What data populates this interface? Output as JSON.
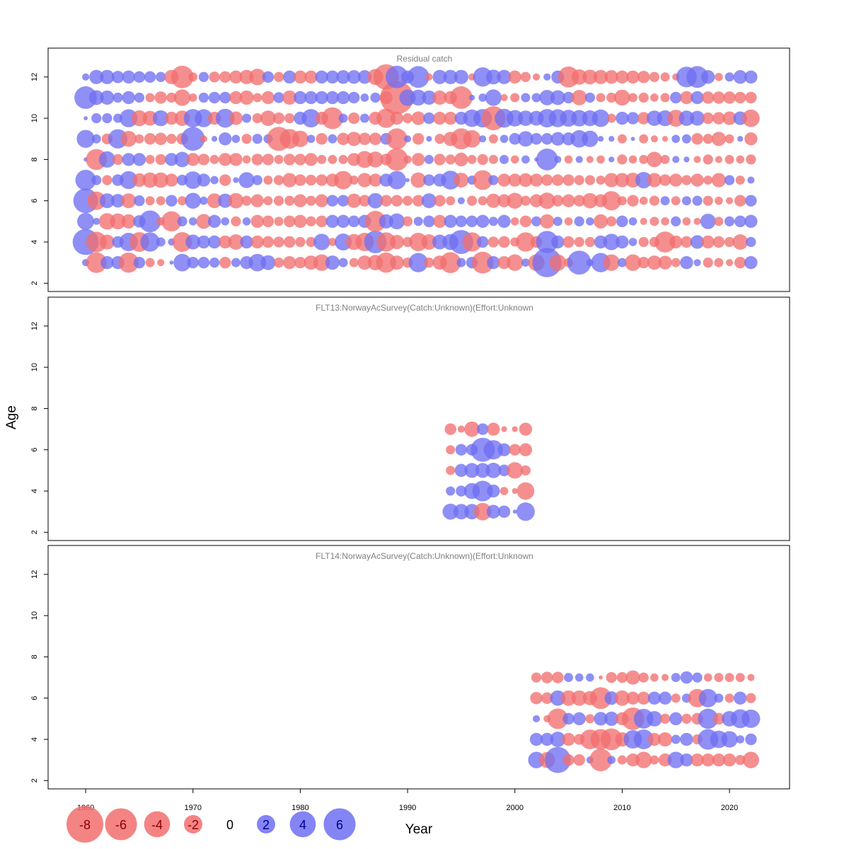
{
  "chart_data": {
    "type": "scatter",
    "subtype": "bubble-residuals",
    "xlabel": "Year",
    "ylabel": "Age",
    "xticks": [
      1960,
      1970,
      1980,
      1990,
      2000,
      2010,
      2020
    ],
    "yticks": [
      2,
      4,
      6,
      8,
      10,
      12
    ],
    "xlim": [
      1956.5,
      2025.6
    ],
    "ylim": [
      1.6,
      13.4
    ],
    "colors": {
      "positive": "#6f6ff2",
      "negative": "#f26f6f"
    },
    "panels": [
      {
        "title": "Residual catch",
        "years": [
          1960,
          2022
        ],
        "ages": [
          3,
          4,
          5,
          6,
          7,
          8,
          9,
          10,
          11,
          12
        ],
        "residuals": {
          "12": [
            0.3,
            1.2,
            1.2,
            0.9,
            1.0,
            0.8,
            0.8,
            0.6,
            -1.2,
            -3.0,
            -0.5,
            0.6,
            -0.7,
            -0.8,
            -1.0,
            -1.2,
            -1.6,
            0.8,
            -0.6,
            1.0,
            -1.0,
            -1.0,
            1.0,
            1.0,
            1.1,
            1.1,
            1.1,
            -1.5,
            -3.8,
            3.0,
            1.0,
            2.8,
            -0.3,
            1.2,
            1.2,
            1.2,
            -0.3,
            2.2,
            1.3,
            1.2,
            -1.0,
            -0.6,
            -0.3,
            0.3,
            1.0,
            -2.6,
            -1.4,
            -1.3,
            -1.2,
            -1.1,
            -1.0,
            -1.0,
            -0.9,
            -0.6,
            -0.5,
            -0.3,
            2.5,
            2.8,
            1.1,
            -0.4,
            0.5,
            1.1,
            1.0
          ],
          "11": [
            3.0,
            1.3,
            1.2,
            0.6,
            1.0,
            0.6,
            -0.5,
            -0.9,
            -0.6,
            -1.6,
            -0.4,
            0.6,
            0.8,
            0.8,
            -1.0,
            -1.2,
            -0.5,
            -1.0,
            0.7,
            -1.2,
            1.0,
            1.0,
            1.0,
            1.0,
            1.0,
            0.8,
            0.4,
            0.6,
            -1.0,
            -6.5,
            1.6,
            1.5,
            1.2,
            -1.2,
            -1.0,
            -3.0,
            0.2,
            0.4,
            1.6,
            -0.3,
            -0.5,
            0.5,
            0.5,
            1.4,
            1.3,
            0.8,
            -1.4,
            0.6,
            -0.5,
            -0.6,
            -1.5,
            -0.5,
            -0.6,
            -0.4,
            -0.5,
            0.8,
            -1.0,
            1.0,
            -0.9,
            -0.9,
            -0.9,
            -0.8,
            -0.8
          ],
          "10": [
            0.1,
            0.6,
            0.6,
            0.5,
            1.9,
            -1.5,
            -1.3,
            1.5,
            -1.0,
            -1.4,
            2.0,
            1.9,
            -1.0,
            2.1,
            -1.1,
            0.5,
            -0.6,
            -1.4,
            -0.8,
            -0.6,
            1.0,
            2.0,
            -1.0,
            -2.8,
            0.5,
            -0.8,
            0.5,
            -1.0,
            -2.2,
            -1.0,
            -0.6,
            -1.1,
            0.8,
            -1.0,
            -1.0,
            1.0,
            1.8,
            2.0,
            -3.4,
            2.1,
            1.6,
            1.4,
            1.3,
            2.0,
            1.9,
            1.7,
            1.6,
            1.5,
            1.8,
            -0.5,
            1.0,
            0.9,
            -0.9,
            1.4,
            1.5,
            -1.7,
            1.4,
            1.3,
            -0.8,
            -0.9,
            -1.1,
            1.1,
            -1.8
          ],
          "9": [
            1.9,
            0.5,
            -0.7,
            2.2,
            -1.5,
            -0.5,
            -0.8,
            -0.9,
            -0.6,
            -0.8,
            3.3,
            -0.3,
            0.2,
            1.0,
            0.4,
            -0.6,
            0.6,
            0.5,
            -3.4,
            -2.3,
            -1.6,
            0.4,
            -0.8,
            0.5,
            -0.9,
            -1.2,
            -0.9,
            -0.9,
            0.8,
            -2.6,
            0.3,
            -0.8,
            0.2,
            -0.6,
            -1.2,
            -2.6,
            -1.8,
            0.3,
            -0.5,
            0.4,
            0.8,
            1.4,
            0.8,
            0.8,
            1.1,
            1.0,
            1.8,
            1.6,
            0.2,
            0.2,
            -0.5,
            0.1,
            -0.5,
            -0.3,
            -0.2,
            0.4,
            0.5,
            -0.8,
            -0.6,
            -1.2,
            -0.5,
            0.2,
            -1.0
          ],
          "8": [
            0.1,
            -2.6,
            1.6,
            -0.7,
            1.0,
            1.0,
            -0.5,
            -0.7,
            1.0,
            1.4,
            -1.0,
            -0.8,
            -0.5,
            -1.0,
            -1.0,
            -0.4,
            -0.8,
            -0.8,
            -0.5,
            -0.8,
            -0.8,
            -1.0,
            -0.5,
            -0.5,
            -0.5,
            -1.0,
            -1.7,
            -1.5,
            -0.8,
            -3.0,
            -0.4,
            -1.0,
            0.5,
            -0.8,
            -0.6,
            -1.1,
            -0.5,
            -0.7,
            -0.5,
            0.5,
            -0.4,
            0.4,
            0.1,
            2.8,
            0.3,
            -0.4,
            0.3,
            -0.3,
            -0.4,
            0.2,
            -0.6,
            -0.4,
            -0.5,
            -1.4,
            -0.5,
            0.3,
            0.2,
            -0.3,
            -0.6,
            -0.3,
            -0.5,
            -0.4,
            -0.6
          ],
          "7": [
            2.5,
            0.6,
            -0.6,
            0.8,
            1.9,
            -1.1,
            -1.4,
            -1.4,
            -1.0,
            0.7,
            1.8,
            1.0,
            0.4,
            -0.8,
            0.2,
            1.5,
            0.6,
            -0.5,
            -0.6,
            -1.2,
            -0.8,
            -0.7,
            -0.8,
            -1.0,
            -2.0,
            -0.5,
            -1.2,
            -1.0,
            1.0,
            2.0,
            0.1,
            -1.4,
            0.8,
            1.0,
            2.1,
            -1.3,
            0.5,
            -2.3,
            0.6,
            -1.0,
            -1.0,
            -1.1,
            -1.0,
            -0.8,
            -0.8,
            -0.8,
            -0.6,
            -0.6,
            -0.5,
            -1.2,
            -1.2,
            -1.3,
            1.6,
            -1.2,
            -0.8,
            -1.0,
            -0.6,
            -1.0,
            -0.5,
            -1.2,
            0.6,
            -0.5,
            0.3
          ],
          "6": [
            3.6,
            -2.0,
            1.3,
            1.1,
            -1.3,
            0.7,
            -0.5,
            -0.5,
            0.8,
            -0.5,
            1.5,
            0.4,
            -1.3,
            1.2,
            -1.4,
            -0.6,
            -1.0,
            -0.5,
            -0.6,
            -0.6,
            -1.0,
            -0.6,
            -1.0,
            0.8,
            0.8,
            -1.2,
            -0.8,
            1.4,
            -0.8,
            -0.8,
            -0.6,
            -0.8,
            1.3,
            -0.8,
            -0.5,
            0.3,
            -0.6,
            -0.5,
            -1.2,
            -1.0,
            -1.5,
            -0.6,
            -1.0,
            -1.6,
            -0.8,
            -1.0,
            -0.8,
            -1.4,
            -1.0,
            -2.2,
            -0.5,
            -0.8,
            -0.4,
            -0.6,
            0.5,
            -0.5,
            0.5,
            0.6,
            -0.6,
            -0.4,
            -0.3,
            -0.8,
            0.8
          ],
          "5": [
            1.7,
            0.3,
            -1.6,
            -1.5,
            -1.2,
            0.9,
            2.8,
            -0.4,
            -2.4,
            0.6,
            0.4,
            -1.3,
            1.0,
            0.4,
            -0.6,
            0.4,
            -1.0,
            -0.8,
            -0.5,
            -0.8,
            -1.0,
            -0.6,
            -0.8,
            1.0,
            1.0,
            0.8,
            1.0,
            -2.6,
            1.2,
            1.5,
            -0.6,
            0.5,
            0.8,
            -1.0,
            1.0,
            0.8,
            0.8,
            1.0,
            0.5,
            1.0,
            -0.4,
            -0.8,
            0.6,
            -1.2,
            0.5,
            -0.4,
            0.6,
            0.4,
            -1.2,
            -0.6,
            0.8,
            0.4,
            -0.3,
            -0.5,
            -0.4,
            0.6,
            -0.4,
            -0.3,
            1.4,
            -0.5,
            0.6,
            0.8,
            1.0
          ],
          "4": [
            4.0,
            -2.5,
            -1.3,
            0.8,
            2.0,
            -2.3,
            2.2,
            0.5,
            0.3,
            -2.3,
            1.3,
            1.0,
            1.0,
            -1.0,
            -1.4,
            1.0,
            -1.0,
            -0.8,
            -0.7,
            -0.8,
            -0.6,
            -0.6,
            1.6,
            -0.4,
            1.7,
            -1.5,
            -2.0,
            3.0,
            -2.2,
            -1.2,
            -0.6,
            -2.0,
            -1.4,
            1.3,
            1.5,
            3.4,
            -2.2,
            0.8,
            -0.7,
            -0.8,
            -0.5,
            -2.2,
            -0.8,
            2.9,
            1.0,
            -0.8,
            -0.6,
            -0.6,
            1.0,
            1.6,
            1.0,
            0.4,
            -0.6,
            -0.6,
            -2.6,
            -1.0,
            -0.8,
            1.1,
            -1.0,
            -0.8,
            -0.6,
            -1.4,
            0.6
          ],
          "3": [
            0.3,
            -2.5,
            1.0,
            1.0,
            -2.4,
            0.8,
            -0.5,
            -0.3,
            0.1,
            1.8,
            0.8,
            0.8,
            0.6,
            -0.8,
            0.5,
            1.0,
            1.8,
            1.3,
            -0.6,
            -1.0,
            -0.8,
            -1.2,
            -1.6,
            1.2,
            0.5,
            -0.5,
            -1.2,
            -1.4,
            -2.4,
            -1.2,
            -0.6,
            2.2,
            -0.6,
            -1.2,
            -2.6,
            0.5,
            0.8,
            -2.8,
            1.0,
            -1.0,
            -1.6,
            0.4,
            -1.6,
            5.0,
            -1.6,
            -0.5,
            3.4,
            0.3,
            2.2,
            -1.6,
            0.5,
            -1.6,
            -0.8,
            -1.2,
            -1.1,
            -0.5,
            1.0,
            0.3,
            -0.6,
            -0.5,
            -0.3,
            -0.8,
            1.0
          ]
        }
      },
      {
        "title": "FLT13:NorwayAcSurvey(Catch:Unknown)(Effort:Unknown",
        "years": [
          1994,
          2001
        ],
        "ages": [
          3,
          4,
          5,
          6,
          7
        ],
        "residuals": {
          "7": [
            -0.8,
            -0.3,
            -1.4,
            0.8,
            -1.0,
            -0.2,
            -0.2,
            -1.0
          ],
          "6": [
            -0.5,
            0.8,
            0.8,
            3.4,
            2.2,
            1.0,
            -0.8,
            -1.0
          ],
          "5": [
            -0.5,
            1.0,
            1.3,
            1.3,
            1.4,
            0.8,
            -1.6,
            -0.6
          ],
          "4": [
            0.5,
            0.7,
            1.5,
            2.5,
            1.0,
            -0.4,
            -0.2,
            -1.8
          ],
          "3": [
            1.5,
            1.4,
            1.4,
            -1.8,
            1.1,
            0.9,
            0.1,
            2.0
          ]
        }
      },
      {
        "title": "FLT14:NorwayAcSurvey(Catch:Unknown)(Effort:Unknown",
        "years": [
          2002,
          2022
        ],
        "ages": [
          3,
          4,
          5,
          6,
          7
        ],
        "residuals": {
          "7": [
            -0.6,
            -0.8,
            -0.8,
            0.5,
            0.4,
            0.4,
            -0.1,
            -0.7,
            -0.7,
            -1.2,
            -0.6,
            -0.4,
            -0.3,
            0.5,
            0.9,
            0.6,
            -0.4,
            -0.5,
            -0.5,
            -0.5,
            -0.3
          ],
          "6": [
            -0.9,
            -0.8,
            1.4,
            -1.4,
            -1.4,
            -1.2,
            -2.8,
            1.1,
            -1.4,
            -1.0,
            -1.0,
            1.0,
            1.0,
            -0.5,
            0.5,
            -2.0,
            2.0,
            0.5,
            -0.5,
            1.0,
            -0.6
          ],
          "5": [
            0.3,
            -0.3,
            -2.5,
            0.8,
            1.0,
            -0.5,
            1.1,
            1.2,
            -1.0,
            -3.0,
            2.3,
            1.4,
            -0.6,
            1.0,
            -0.6,
            -0.8,
            2.4,
            -0.8,
            1.4,
            2.1,
            2.0
          ],
          "4": [
            1.0,
            1.0,
            1.4,
            -1.0,
            -0.7,
            -2.3,
            -2.5,
            -2.8,
            -1.2,
            2.0,
            2.3,
            -1.0,
            -1.2,
            0.5,
            1.0,
            -0.6,
            2.5,
            1.8,
            1.6,
            0.4,
            0.8
          ],
          "3": [
            1.6,
            -1.5,
            4.0,
            -0.8,
            -0.8,
            0.3,
            -3.0,
            0.4,
            -0.5,
            -1.0,
            -1.6,
            -0.5,
            -1.0,
            1.6,
            1.0,
            -1.0,
            -1.0,
            -1.0,
            -1.0,
            -0.6,
            -1.6
          ]
        }
      }
    ],
    "legend": {
      "position": "bottom-left",
      "entries": [
        {
          "label": "-8",
          "value": -8
        },
        {
          "label": "-6",
          "value": -6
        },
        {
          "label": "-4",
          "value": -4
        },
        {
          "label": "-2",
          "value": -2
        },
        {
          "label": "0",
          "value": 0
        },
        {
          "label": "2",
          "value": 2
        },
        {
          "label": "4",
          "value": 4
        },
        {
          "label": "6",
          "value": 6
        }
      ]
    }
  }
}
